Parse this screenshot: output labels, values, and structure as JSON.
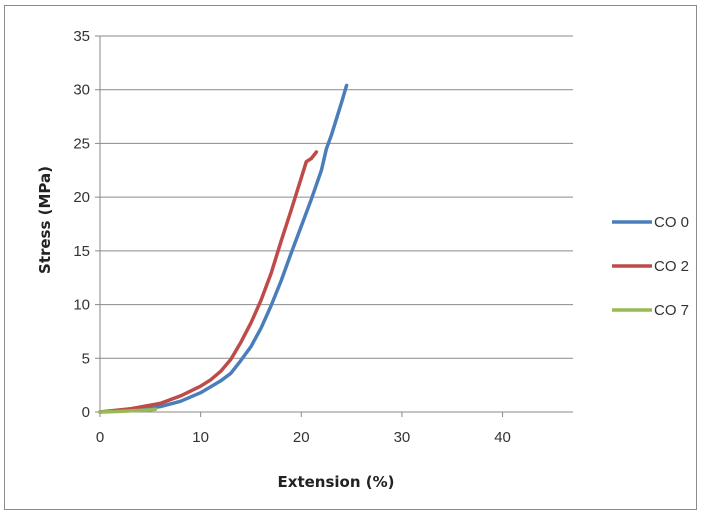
{
  "chart_data": {
    "type": "line",
    "title": "",
    "xlabel": "Extension (%)",
    "ylabel": "Stress (MPa)",
    "xlim": [
      0,
      47
    ],
    "ylim": [
      0,
      35
    ],
    "x_ticks": [
      0,
      10,
      20,
      30,
      40
    ],
    "y_ticks": [
      0,
      5,
      10,
      15,
      20,
      25,
      30,
      35
    ],
    "grid": "horizontal",
    "legend_position": "right",
    "series": [
      {
        "name": "CO 0",
        "color": "#4a7ebb",
        "x": [
          0,
          3,
          6,
          8,
          10,
          12,
          13,
          14,
          15,
          16,
          17,
          18,
          19,
          20,
          21,
          22,
          22.5,
          23,
          23.5,
          24,
          24.5
        ],
        "y": [
          0,
          0.2,
          0.5,
          1.0,
          1.8,
          2.9,
          3.6,
          4.8,
          6.1,
          7.8,
          9.9,
          12.2,
          14.8,
          17.3,
          19.8,
          22.5,
          24.5,
          25.8,
          27.3,
          28.8,
          30.4
        ]
      },
      {
        "name": "CO 2",
        "color": "#be4b48",
        "x": [
          0,
          3,
          6,
          8,
          10,
          11,
          12,
          13,
          14,
          15,
          16,
          17,
          18,
          19,
          20,
          20.5,
          21,
          21.5
        ],
        "y": [
          0,
          0.3,
          0.8,
          1.5,
          2.4,
          3.0,
          3.8,
          4.9,
          6.5,
          8.3,
          10.4,
          12.9,
          15.9,
          18.8,
          21.8,
          23.3,
          23.6,
          24.2
        ]
      },
      {
        "name": "CO 7",
        "color": "#98b954",
        "x": [
          0,
          1,
          2,
          3,
          4,
          5,
          5.5
        ],
        "y": [
          0,
          0.03,
          0.06,
          0.1,
          0.15,
          0.2,
          0.25
        ]
      }
    ]
  }
}
